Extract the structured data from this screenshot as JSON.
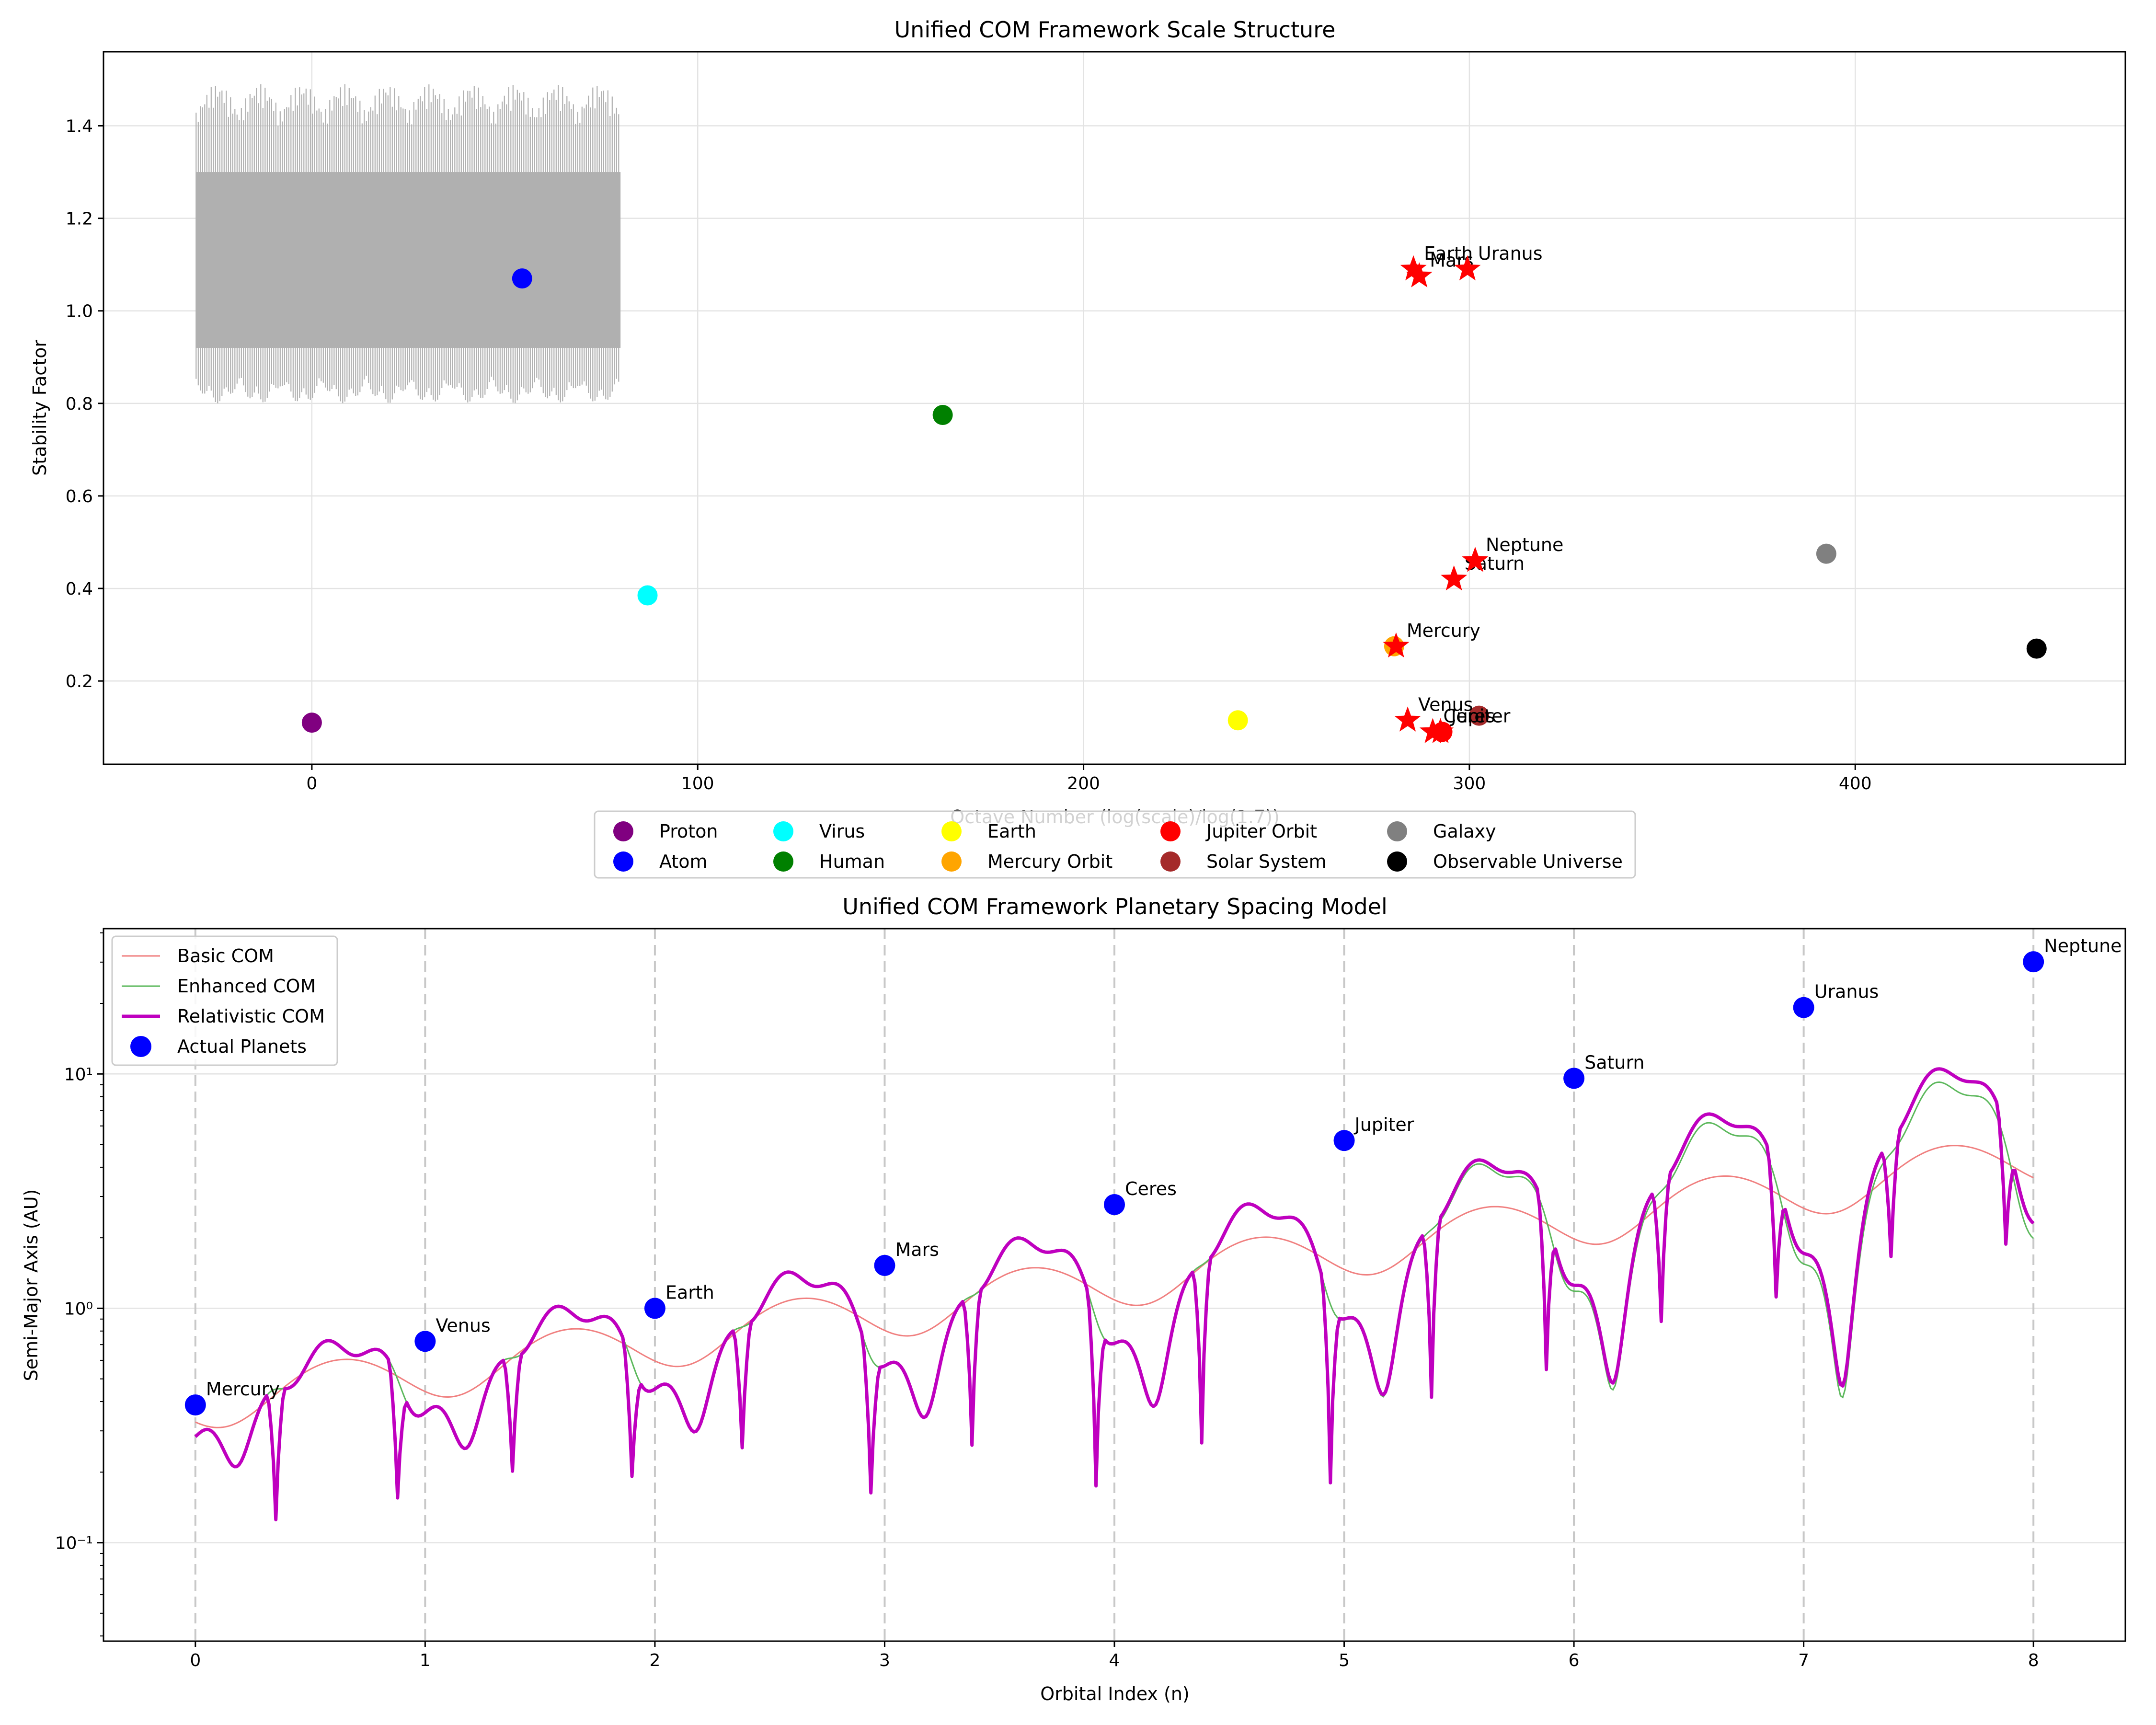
{
  "chart_data": [
    {
      "type": "scatter",
      "title": "Unified COM Framework Scale Structure",
      "xlabel": "Octave Number (log(scale)/log(1.7))",
      "ylabel": "Stability Factor",
      "xlim": [
        -54,
        470
      ],
      "ylim": [
        0.02,
        1.56
      ],
      "xticks": [
        0,
        100,
        200,
        300,
        400
      ],
      "yticks": [
        0.2,
        0.4,
        0.6,
        0.8,
        1.0,
        1.2,
        1.4
      ],
      "xtick_labels": [
        "0",
        "100",
        "200",
        "300",
        "400"
      ],
      "ytick_labels": [
        "0.2",
        "0.4",
        "0.6",
        "0.8",
        "1.0",
        "1.2",
        "1.4"
      ],
      "grid": true,
      "legend_position": "below plot, 5 columns",
      "oscillation_band": {
        "x_range": [
          -30,
          80
        ],
        "y_range": [
          0.8,
          1.49
        ],
        "color": "#b0b0b0"
      },
      "series": [
        {
          "name": "Proton",
          "color": "#800080",
          "x": [
            0
          ],
          "y": [
            0.11
          ]
        },
        {
          "name": "Atom",
          "color": "#0000ff",
          "x": [
            54.5
          ],
          "y": [
            1.07
          ]
        },
        {
          "name": "Virus",
          "color": "#00ffff",
          "x": [
            87
          ],
          "y": [
            0.385
          ]
        },
        {
          "name": "Human",
          "color": "#008000",
          "x": [
            163.5
          ],
          "y": [
            0.775
          ]
        },
        {
          "name": "Earth",
          "color": "#ffff00",
          "x": [
            240
          ],
          "y": [
            0.115
          ]
        },
        {
          "name": "Mercury Orbit",
          "color": "#ffa500",
          "x": [
            280.5
          ],
          "y": [
            0.275
          ]
        },
        {
          "name": "Jupiter Orbit",
          "color": "#ff0000",
          "x": [
            293
          ],
          "y": [
            0.09
          ]
        },
        {
          "name": "Solar System",
          "color": "#a52a2a",
          "x": [
            302.5
          ],
          "y": [
            0.125
          ]
        },
        {
          "name": "Galaxy",
          "color": "#808080",
          "x": [
            392.5
          ],
          "y": [
            0.475
          ]
        },
        {
          "name": "Observable Universe",
          "color": "#000000",
          "x": [
            447
          ],
          "y": [
            0.27
          ]
        }
      ],
      "planet_stars": {
        "color": "#ff0000",
        "points": [
          {
            "label": "Mercury",
            "x": 281,
            "y": 0.275
          },
          {
            "label": "Venus",
            "x": 284,
            "y": 0.115
          },
          {
            "label": "Earth",
            "x": 285.5,
            "y": 1.09
          },
          {
            "label": "Mars",
            "x": 287,
            "y": 1.075
          },
          {
            "label": "Ceres",
            "x": 290.5,
            "y": 0.09
          },
          {
            "label": "Jupiter",
            "x": 292.5,
            "y": 0.09
          },
          {
            "label": "Saturn",
            "x": 296,
            "y": 0.42
          },
          {
            "label": "Uranus",
            "x": 299.5,
            "y": 1.09
          },
          {
            "label": "Neptune",
            "x": 301.5,
            "y": 0.46
          }
        ]
      }
    },
    {
      "type": "line",
      "title": "Unified COM Framework Planetary Spacing Model",
      "xlabel": "Orbital Index (n)",
      "ylabel": "Semi-Major Axis (AU)",
      "y_scale": "log",
      "xlim": [
        -0.4,
        8.4
      ],
      "ylim_log10": [
        -1.42,
        1.62
      ],
      "xticks": [
        0,
        1,
        2,
        3,
        4,
        5,
        6,
        7,
        8
      ],
      "xtick_labels": [
        "0",
        "1",
        "2",
        "3",
        "4",
        "5",
        "6",
        "7",
        "8"
      ],
      "yticks": [
        0.1,
        1,
        10
      ],
      "ytick_labels": [
        "10⁻¹",
        "10⁰",
        "10¹"
      ],
      "grid": true,
      "legend_position": "top-left",
      "series": [
        {
          "name": "Basic COM",
          "color": "#f08080",
          "style": "thin line"
        },
        {
          "name": "Enhanced COM",
          "color": "#5cb85c",
          "style": "thin line"
        },
        {
          "name": "Relativistic COM",
          "color": "#bf00bf",
          "style": "thick line"
        },
        {
          "name": "Actual Planets",
          "color": "#0000ff",
          "style": "markers"
        }
      ],
      "model_parameters": {
        "base_start": 0.4,
        "base_growth_per_n": 1.35,
        "oscillation_period": 1.0,
        "phase_offset": 0.62,
        "drop_positions": [
          0.35,
          0.88,
          1.38,
          1.9,
          2.38,
          2.94,
          3.38,
          3.92,
          4.38,
          4.94,
          5.38,
          5.88,
          6.38,
          6.88,
          7.38,
          7.88
        ]
      },
      "planets": [
        {
          "label": "Mercury",
          "n": 0,
          "a": 0.387
        },
        {
          "label": "Venus",
          "n": 1,
          "a": 0.723
        },
        {
          "label": "Earth",
          "n": 2,
          "a": 1.0
        },
        {
          "label": "Mars",
          "n": 3,
          "a": 1.524
        },
        {
          "label": "Ceres",
          "n": 4,
          "a": 2.77
        },
        {
          "label": "Jupiter",
          "n": 5,
          "a": 5.2
        },
        {
          "label": "Saturn",
          "n": 6,
          "a": 9.58
        },
        {
          "label": "Uranus",
          "n": 7,
          "a": 19.2
        },
        {
          "label": "Neptune",
          "n": 8,
          "a": 30.1
        }
      ]
    }
  ]
}
